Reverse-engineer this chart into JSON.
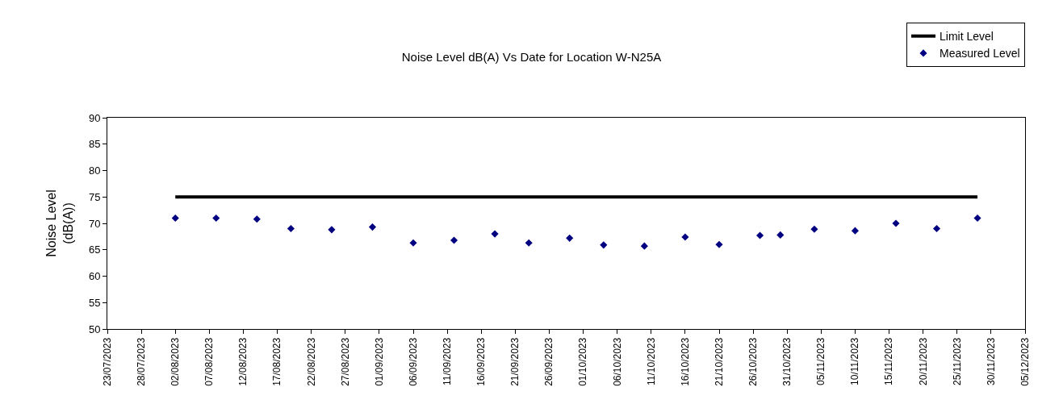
{
  "chart_data": {
    "type": "scatter",
    "title": "Noise Level dB(A) Vs Date for Location W-N25A",
    "ylabel": "Noise Level\n(dB(A))",
    "series": [
      {
        "name": "Limit Level",
        "type": "line",
        "color": "#000000",
        "marker": "none",
        "x": [
          "2023-08-02",
          "2023-11-28"
        ],
        "values": [
          75,
          75
        ]
      },
      {
        "name": "Measured Level",
        "color": "#000080",
        "marker": "diamond",
        "x": [
          "2023-08-02",
          "2023-08-08",
          "2023-08-14",
          "2023-08-19",
          "2023-08-25",
          "2023-08-31",
          "2023-09-06",
          "2023-09-12",
          "2023-09-18",
          "2023-09-23",
          "2023-09-29",
          "2023-10-04",
          "2023-10-10",
          "2023-10-16",
          "2023-10-21",
          "2023-10-27",
          "2023-10-30",
          "2023-11-04",
          "2023-11-10",
          "2023-11-16",
          "2023-11-22",
          "2023-11-28"
        ],
        "values": [
          71.0,
          71.0,
          70.8,
          69.0,
          68.8,
          69.3,
          66.3,
          66.8,
          68.0,
          66.3,
          67.2,
          65.9,
          65.7,
          67.4,
          66.0,
          67.7,
          67.8,
          68.9,
          68.6,
          70.0,
          69.0,
          71.0
        ]
      }
    ],
    "xlim": [
      "2023-07-23",
      "2023-12-05"
    ],
    "xticks": [
      {
        "value": "2023-07-23",
        "label": "23/07/2023"
      },
      {
        "value": "2023-07-28",
        "label": "28/07/2023"
      },
      {
        "value": "2023-08-02",
        "label": "02/08/2023"
      },
      {
        "value": "2023-08-07",
        "label": "07/08/2023"
      },
      {
        "value": "2023-08-12",
        "label": "12/08/2023"
      },
      {
        "value": "2023-08-17",
        "label": "17/08/2023"
      },
      {
        "value": "2023-08-22",
        "label": "22/08/2023"
      },
      {
        "value": "2023-08-27",
        "label": "27/08/2023"
      },
      {
        "value": "2023-09-01",
        "label": "01/09/2023"
      },
      {
        "value": "2023-09-06",
        "label": "06/09/2023"
      },
      {
        "value": "2023-09-11",
        "label": "11/09/2023"
      },
      {
        "value": "2023-09-16",
        "label": "16/09/2023"
      },
      {
        "value": "2023-09-21",
        "label": "21/09/2023"
      },
      {
        "value": "2023-09-26",
        "label": "26/09/2023"
      },
      {
        "value": "2023-10-01",
        "label": "01/10/2023"
      },
      {
        "value": "2023-10-06",
        "label": "06/10/2023"
      },
      {
        "value": "2023-10-11",
        "label": "11/10/2023"
      },
      {
        "value": "2023-10-16",
        "label": "16/10/2023"
      },
      {
        "value": "2023-10-21",
        "label": "21/10/2023"
      },
      {
        "value": "2023-10-26",
        "label": "26/10/2023"
      },
      {
        "value": "2023-10-31",
        "label": "31/10/2023"
      },
      {
        "value": "2023-11-05",
        "label": "05/11/2023"
      },
      {
        "value": "2023-11-10",
        "label": "10/11/2023"
      },
      {
        "value": "2023-11-15",
        "label": "15/11/2023"
      },
      {
        "value": "2023-11-20",
        "label": "20/11/2023"
      },
      {
        "value": "2023-11-25",
        "label": "25/11/2023"
      },
      {
        "value": "2023-11-30",
        "label": "30/11/2023"
      },
      {
        "value": "2023-12-05",
        "label": "05/12/2023"
      }
    ],
    "ylim": [
      50,
      90
    ],
    "yticks": [
      50,
      55,
      60,
      65,
      70,
      75,
      80,
      85,
      90
    ],
    "grid": false,
    "legend": "top right"
  }
}
